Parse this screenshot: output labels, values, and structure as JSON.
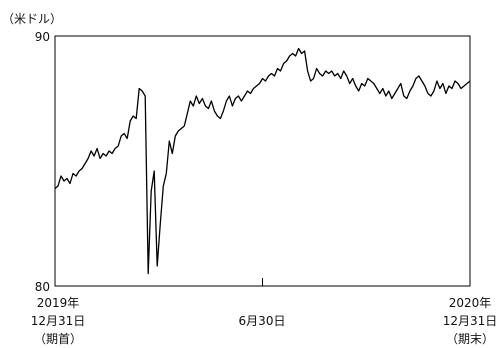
{
  "chart_data": {
    "type": "line",
    "unit_label": "（米ドル）",
    "ylim": [
      80,
      90
    ],
    "y_tick_labels": [
      "90",
      "80"
    ],
    "x_tick_labels": [
      [
        "2019年",
        "12月31日",
        "（期首）"
      ],
      [
        "6月30日"
      ],
      [
        "2020年",
        "12月31日",
        "（期末）"
      ]
    ],
    "grid": false,
    "legend": "none",
    "line_color": "#000000",
    "series": [
      {
        "values": [
          83.9,
          84.0,
          84.4,
          84.2,
          84.3,
          84.1,
          84.5,
          84.4,
          84.6,
          84.7,
          84.9,
          85.1,
          85.4,
          85.2,
          85.5,
          85.1,
          85.3,
          85.2,
          85.4,
          85.3,
          85.5,
          85.6,
          86.0,
          86.1,
          85.9,
          86.6,
          86.8,
          86.7,
          87.9,
          87.8,
          87.6,
          80.5,
          83.8,
          84.6,
          80.8,
          82.5,
          84.0,
          84.5,
          85.8,
          85.3,
          86.0,
          86.2,
          86.3,
          86.4,
          86.9,
          87.4,
          87.2,
          87.6,
          87.3,
          87.5,
          87.2,
          87.1,
          87.4,
          87.0,
          86.8,
          86.7,
          87.0,
          87.4,
          87.6,
          87.2,
          87.5,
          87.6,
          87.4,
          87.6,
          87.8,
          87.7,
          87.9,
          88.0,
          88.1,
          88.3,
          88.2,
          88.4,
          88.5,
          88.4,
          88.7,
          88.6,
          88.9,
          89.0,
          89.2,
          89.3,
          89.2,
          89.5,
          89.3,
          89.4,
          88.6,
          88.2,
          88.3,
          88.7,
          88.5,
          88.4,
          88.6,
          88.5,
          88.6,
          88.4,
          88.5,
          88.3,
          88.6,
          88.4,
          88.1,
          88.3,
          88.0,
          87.8,
          88.1,
          88.0,
          88.3,
          88.2,
          88.1,
          87.9,
          87.7,
          87.9,
          87.6,
          87.8,
          87.5,
          87.7,
          87.9,
          88.1,
          87.6,
          87.5,
          87.8,
          88.0,
          88.3,
          88.4,
          88.2,
          88.0,
          87.7,
          87.6,
          87.8,
          88.2,
          87.9,
          88.1,
          87.7,
          88.0,
          87.9,
          88.2,
          88.1,
          87.9,
          88.0,
          88.1,
          88.2
        ]
      }
    ]
  }
}
